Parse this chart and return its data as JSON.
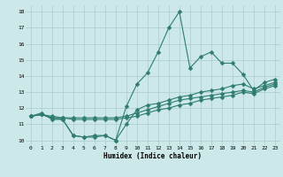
{
  "xlabel": "Humidex (Indice chaleur)",
  "bg_color": "#cce8e8",
  "grid_color": "#aacccc",
  "line_color": "#2e7d6e",
  "xlim": [
    -0.5,
    23.5
  ],
  "ylim": [
    9.7,
    18.4
  ],
  "xticks": [
    0,
    1,
    2,
    3,
    4,
    5,
    6,
    7,
    8,
    9,
    10,
    11,
    12,
    13,
    14,
    15,
    16,
    17,
    18,
    19,
    20,
    21,
    22,
    23
  ],
  "yticks": [
    10,
    11,
    12,
    13,
    14,
    15,
    16,
    17,
    18
  ],
  "series": [
    {
      "x": [
        0,
        1,
        2,
        3,
        4,
        5,
        6,
        7,
        8,
        9,
        10,
        11,
        12,
        13,
        14,
        15,
        16,
        17,
        18,
        19,
        20,
        21,
        22,
        23
      ],
      "y": [
        11.5,
        11.7,
        11.3,
        11.3,
        10.3,
        10.2,
        10.3,
        10.3,
        10.0,
        12.1,
        13.5,
        14.2,
        15.5,
        17.0,
        18.0,
        14.5,
        15.2,
        15.5,
        14.8,
        14.8,
        14.1,
        13.1,
        13.6,
        13.8
      ]
    },
    {
      "x": [
        0,
        1,
        2,
        3,
        4,
        5,
        6,
        7,
        8,
        9,
        10,
        11,
        12,
        13,
        14,
        15,
        16,
        17,
        18,
        19,
        20,
        21,
        22,
        23
      ],
      "y": [
        11.5,
        11.6,
        11.4,
        11.3,
        10.3,
        10.2,
        10.2,
        10.3,
        10.0,
        11.0,
        11.9,
        12.2,
        12.3,
        12.5,
        12.7,
        12.8,
        13.0,
        13.1,
        13.2,
        13.4,
        13.5,
        13.2,
        13.4,
        13.6
      ]
    },
    {
      "x": [
        0,
        1,
        2,
        3,
        4,
        5,
        6,
        7,
        8,
        9,
        10,
        11,
        12,
        13,
        14,
        15,
        16,
        17,
        18,
        19,
        20,
        21,
        22,
        23
      ],
      "y": [
        11.5,
        11.6,
        11.5,
        11.4,
        11.4,
        11.4,
        11.4,
        11.4,
        11.4,
        11.5,
        11.7,
        11.9,
        12.1,
        12.3,
        12.5,
        12.6,
        12.7,
        12.8,
        12.9,
        13.0,
        13.1,
        13.0,
        13.3,
        13.5
      ]
    },
    {
      "x": [
        0,
        1,
        2,
        3,
        4,
        5,
        6,
        7,
        8,
        9,
        10,
        11,
        12,
        13,
        14,
        15,
        16,
        17,
        18,
        19,
        20,
        21,
        22,
        23
      ],
      "y": [
        11.5,
        11.6,
        11.4,
        11.4,
        11.3,
        11.3,
        11.3,
        11.3,
        11.3,
        11.4,
        11.5,
        11.7,
        11.9,
        12.0,
        12.2,
        12.3,
        12.5,
        12.6,
        12.7,
        12.8,
        13.0,
        12.9,
        13.2,
        13.4
      ]
    }
  ]
}
